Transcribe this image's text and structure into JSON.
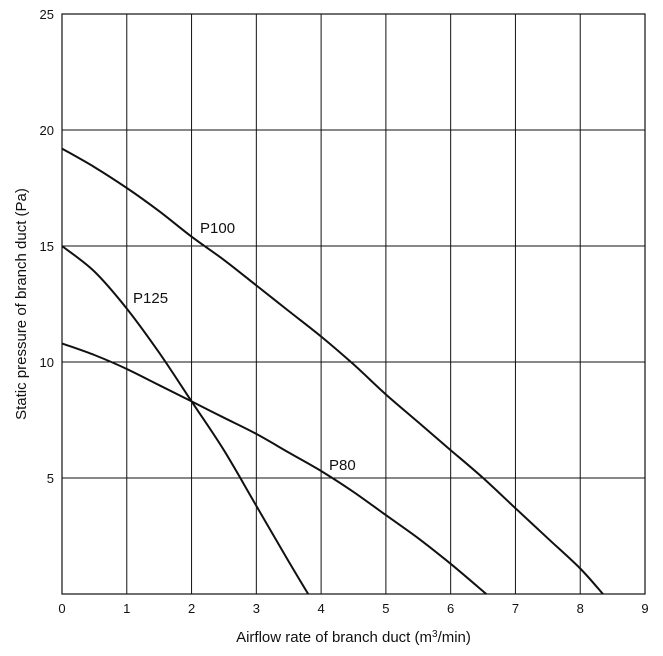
{
  "chart_data": {
    "type": "line",
    "title": "",
    "xlabel": "Airflow rate of branch duct (m3/min)",
    "xlabel_parts": {
      "before": "Airflow rate of branch duct (m",
      "sup": "3",
      "after": "/min)"
    },
    "ylabel": "Static pressure of branch duct (Pa)",
    "xlim": [
      0,
      9
    ],
    "ylim": [
      0,
      25
    ],
    "x_ticks": [
      0,
      1,
      2,
      3,
      4,
      5,
      6,
      7,
      8,
      9
    ],
    "y_ticks": [
      5,
      10,
      15,
      20,
      25
    ],
    "grid": true,
    "legend": "none (series labeled directly on curves)",
    "series": [
      {
        "name": "P100",
        "points": [
          [
            0,
            19.2
          ],
          [
            0.5,
            18.4
          ],
          [
            1,
            17.5
          ],
          [
            1.5,
            16.5
          ],
          [
            2,
            15.4
          ],
          [
            2.5,
            14.4
          ],
          [
            3,
            13.3
          ],
          [
            3.5,
            12.2
          ],
          [
            4,
            11.1
          ],
          [
            4.5,
            9.9
          ],
          [
            5,
            8.6
          ],
          [
            5.5,
            7.4
          ],
          [
            6,
            6.2
          ],
          [
            6.5,
            5.0
          ],
          [
            7,
            3.7
          ],
          [
            7.5,
            2.4
          ],
          [
            8,
            1.1
          ],
          [
            8.35,
            0
          ]
        ]
      },
      {
        "name": "P125",
        "points": [
          [
            0,
            15.0
          ],
          [
            0.5,
            13.9
          ],
          [
            1,
            12.3
          ],
          [
            1.5,
            10.4
          ],
          [
            2,
            8.3
          ],
          [
            2.5,
            6.2
          ],
          [
            3,
            3.8
          ],
          [
            3.5,
            1.4
          ],
          [
            3.8,
            0
          ]
        ]
      },
      {
        "name": "P80",
        "points": [
          [
            0,
            10.8
          ],
          [
            0.5,
            10.3
          ],
          [
            1,
            9.7
          ],
          [
            1.5,
            9.0
          ],
          [
            2,
            8.3
          ],
          [
            2.5,
            7.6
          ],
          [
            3,
            6.9
          ],
          [
            3.5,
            6.1
          ],
          [
            4,
            5.3
          ],
          [
            4.5,
            4.4
          ],
          [
            5,
            3.4
          ],
          [
            5.5,
            2.4
          ],
          [
            6,
            1.3
          ],
          [
            6.55,
            0
          ]
        ]
      }
    ]
  }
}
